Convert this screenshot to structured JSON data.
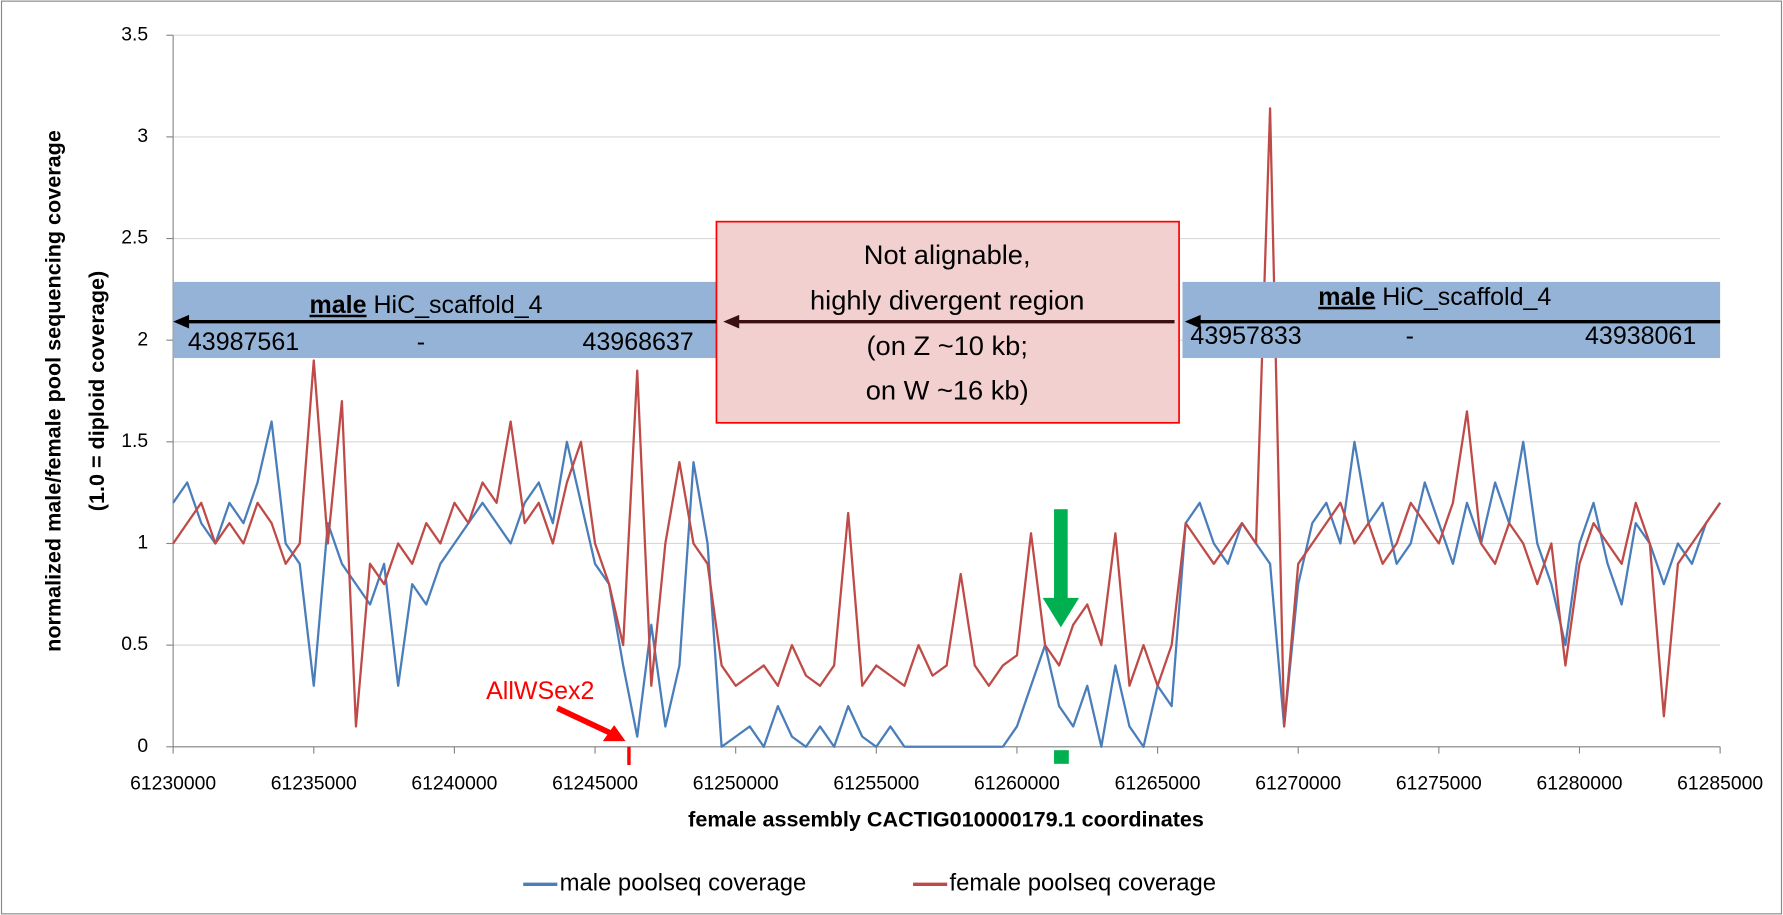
{
  "chart_data": {
    "type": "line",
    "xlabel": "female assembly CACTIG010000179.1 coordinates",
    "ylabel": [
      "normalized male/female pool sequencing coverage",
      "(1.0 = diploid coverage)"
    ],
    "xlim": [
      61230000,
      61285000
    ],
    "xticks": [
      61230000,
      61235000,
      61240000,
      61245000,
      61250000,
      61255000,
      61260000,
      61265000,
      61270000,
      61275000,
      61280000,
      61285000
    ],
    "ylim": [
      0,
      3.5
    ],
    "yticks": [
      0,
      0.5,
      1,
      1.5,
      2,
      2.5,
      3,
      3.5
    ],
    "grid": true,
    "legend": "bottom",
    "x": [
      61230000,
      61230500,
      61231000,
      61231500,
      61232000,
      61232500,
      61233000,
      61233500,
      61234000,
      61234500,
      61235000,
      61235500,
      61236000,
      61236500,
      61237000,
      61237500,
      61238000,
      61238500,
      61239000,
      61239500,
      61240000,
      61240500,
      61241000,
      61241500,
      61242000,
      61242500,
      61243000,
      61243500,
      61244000,
      61244500,
      61245000,
      61245500,
      61246000,
      61246500,
      61247000,
      61247500,
      61248000,
      61248500,
      61249000,
      61249500,
      61250000,
      61250500,
      61251000,
      61251500,
      61252000,
      61252500,
      61253000,
      61253500,
      61254000,
      61254500,
      61255000,
      61255500,
      61256000,
      61256500,
      61257000,
      61257500,
      61258000,
      61258500,
      61259000,
      61259500,
      61260000,
      61260500,
      61261000,
      61261500,
      61262000,
      61262500,
      61263000,
      61263500,
      61264000,
      61264500,
      61265000,
      61265500,
      61266000,
      61266500,
      61267000,
      61267500,
      61268000,
      61268500,
      61269000,
      61269500,
      61270000,
      61270500,
      61271000,
      61271500,
      61272000,
      61272500,
      61273000,
      61273500,
      61274000,
      61274500,
      61275000,
      61275500,
      61276000,
      61276500,
      61277000,
      61277500,
      61278000,
      61278500,
      61279000,
      61279500,
      61280000,
      61280500,
      61281000,
      61281500,
      61282000,
      61282500,
      61283000,
      61283500,
      61284000,
      61284500,
      61285000
    ],
    "series": [
      {
        "name": "male poolseq coverage",
        "color": "#4a7ebb",
        "values": [
          1.2,
          1.3,
          1.1,
          1.0,
          1.2,
          1.1,
          1.3,
          1.6,
          1.0,
          0.9,
          0.3,
          1.1,
          0.9,
          0.8,
          0.7,
          0.9,
          0.3,
          0.8,
          0.7,
          0.9,
          1.0,
          1.1,
          1.2,
          1.1,
          1.0,
          1.2,
          1.3,
          1.1,
          1.5,
          1.2,
          0.9,
          0.8,
          0.4,
          0.05,
          0.6,
          0.1,
          0.4,
          1.4,
          1.0,
          0.0,
          0.05,
          0.1,
          0.0,
          0.2,
          0.05,
          0.0,
          0.1,
          0.0,
          0.2,
          0.05,
          0.0,
          0.1,
          0.0,
          0.0,
          0.0,
          0.0,
          0.0,
          0.0,
          0.0,
          0.0,
          0.1,
          0.3,
          0.5,
          0.2,
          0.1,
          0.3,
          0.0,
          0.4,
          0.1,
          0.0,
          0.3,
          0.2,
          1.1,
          1.2,
          1.0,
          0.9,
          1.1,
          1.0,
          0.9,
          0.1,
          0.8,
          1.1,
          1.2,
          1.0,
          1.5,
          1.1,
          1.2,
          0.9,
          1.0,
          1.3,
          1.1,
          0.9,
          1.2,
          1.0,
          1.3,
          1.1,
          1.5,
          1.0,
          0.8,
          0.5,
          1.0,
          1.2,
          0.9,
          0.7,
          1.1,
          1.0,
          0.8,
          1.0,
          0.9,
          1.1,
          1.2
        ]
      },
      {
        "name": "female poolseq coverage",
        "color": "#be4b48",
        "values": [
          1.0,
          1.1,
          1.2,
          1.0,
          1.1,
          1.0,
          1.2,
          1.1,
          0.9,
          1.0,
          1.9,
          1.0,
          1.7,
          0.1,
          0.9,
          0.8,
          1.0,
          0.9,
          1.1,
          1.0,
          1.2,
          1.1,
          1.3,
          1.2,
          1.6,
          1.1,
          1.2,
          1.0,
          1.3,
          1.5,
          1.0,
          0.8,
          0.5,
          1.85,
          0.3,
          1.0,
          1.4,
          1.0,
          0.9,
          0.4,
          0.3,
          0.35,
          0.4,
          0.3,
          0.5,
          0.35,
          0.3,
          0.4,
          1.15,
          0.3,
          0.4,
          0.35,
          0.3,
          0.5,
          0.35,
          0.4,
          0.85,
          0.4,
          0.3,
          0.4,
          0.45,
          1.05,
          0.5,
          0.4,
          0.6,
          0.7,
          0.5,
          1.05,
          0.3,
          0.5,
          0.3,
          0.5,
          1.1,
          1.0,
          0.9,
          1.0,
          1.1,
          1.0,
          3.14,
          0.1,
          0.9,
          1.0,
          1.1,
          1.2,
          1.0,
          1.1,
          0.9,
          1.0,
          1.2,
          1.1,
          1.0,
          1.2,
          1.65,
          1.0,
          0.9,
          1.1,
          1.0,
          0.8,
          1.0,
          0.4,
          0.9,
          1.1,
          1.0,
          0.9,
          1.2,
          1.0,
          0.15,
          0.9,
          1.0,
          1.1,
          1.2
        ]
      }
    ],
    "annotations": {
      "left_scaffold": {
        "bold": "male",
        "name": "HiC_scaffold_4",
        "start": "43987561",
        "dash": "-",
        "end": "43968637"
      },
      "right_scaffold": {
        "bold": "male",
        "name": "HiC_scaffold_4",
        "start": "43957833",
        "dash": "-",
        "end": "43938061"
      },
      "region_box": [
        "Not alignable,",
        "highly divergent region",
        "(on Z ~10 kb;",
        "on W ~16 kb)"
      ],
      "marker": "AllWSex2"
    }
  }
}
